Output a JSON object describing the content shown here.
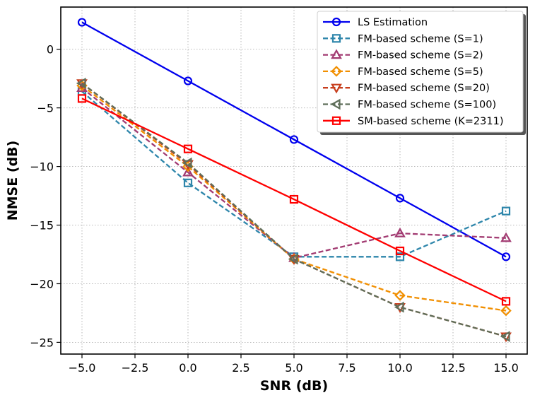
{
  "chart_data": {
    "type": "line",
    "title": "",
    "xlabel": "SNR (dB)",
    "ylabel": "NMSE (dB)",
    "xlim": [
      -6,
      16
    ],
    "ylim": [
      -26,
      3.6
    ],
    "grid": true,
    "legend_position": "top-right",
    "x_ticks": [
      -5.0,
      -2.5,
      0.0,
      2.5,
      5.0,
      7.5,
      10.0,
      12.5,
      15.0
    ],
    "x_tick_labels": [
      "−5.0",
      "−2.5",
      "0.0",
      "2.5",
      "5.0",
      "7.5",
      "10.0",
      "12.5",
      "15.0"
    ],
    "y_ticks": [
      0,
      -5,
      -10,
      -15,
      -20,
      -25
    ],
    "y_tick_labels": [
      "0",
      "−5",
      "−10",
      "−15",
      "−20",
      "−25"
    ],
    "x": [
      -5,
      0,
      5,
      10,
      15
    ],
    "series": [
      {
        "name": "LS Estimation",
        "values": [
          2.3,
          -2.7,
          -7.7,
          -12.7,
          -17.7
        ],
        "color": "#0000ee",
        "marker": "circle",
        "dashed": false
      },
      {
        "name": "FM-based scheme (S=1)",
        "values": [
          -3.6,
          -11.4,
          -17.7,
          -17.7,
          -13.8
        ],
        "color": "#2e86ab",
        "marker": "square",
        "dashed": true
      },
      {
        "name": "FM-based scheme (S=2)",
        "values": [
          -3.3,
          -10.5,
          -17.8,
          -15.7,
          -16.1
        ],
        "color": "#a23b72",
        "marker": "triangle-up",
        "dashed": true
      },
      {
        "name": "FM-based scheme (S=5)",
        "values": [
          -3.1,
          -10.0,
          -17.9,
          -21.0,
          -22.3
        ],
        "color": "#f18f01",
        "marker": "diamond",
        "dashed": true
      },
      {
        "name": "FM-based scheme (S=20)",
        "values": [
          -2.9,
          -9.8,
          -17.9,
          -22.0,
          -24.5
        ],
        "color": "#c73e1d",
        "marker": "triangle-down",
        "dashed": true
      },
      {
        "name": "FM-based scheme (S=100)",
        "values": [
          -2.9,
          -9.7,
          -17.9,
          -22.0,
          -24.5
        ],
        "color": "#5f6f5a",
        "marker": "triangle-left",
        "dashed": true
      },
      {
        "name": "SM-based scheme (K=2311)",
        "values": [
          -4.2,
          -8.5,
          -12.8,
          -17.2,
          -21.5
        ],
        "color": "#ff0000",
        "marker": "square",
        "dashed": false
      }
    ]
  }
}
